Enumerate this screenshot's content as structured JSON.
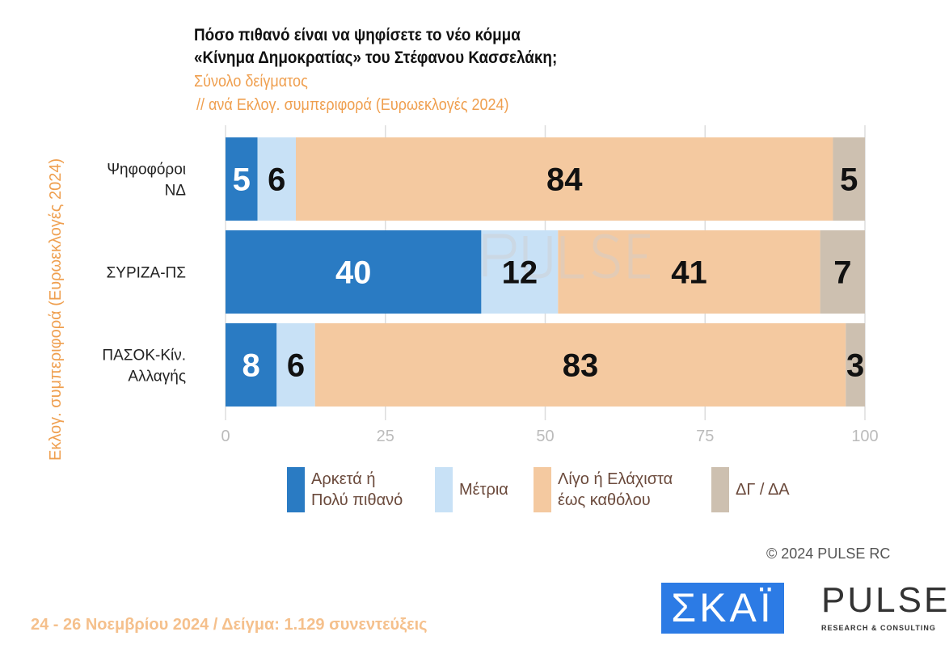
{
  "chart_data": {
    "type": "bar",
    "orientation": "horizontal",
    "stacked": true,
    "title": "Πόσο πιθανό είναι να ψηφίσετε το νέο κόμμα «Κίνημα Δημοκρατίας» του Στέφανου Κασσελάκη;",
    "title_lines": [
      "Πόσο πιθανό είναι να ψηφίσετε το νέο κόμμα",
      "«Κίνημα Δημοκρατίας» του Στέφανου Κασσελάκη;"
    ],
    "subtitle_lines": [
      "Σύνολο δείγματος",
      "// ανά Εκλογ. συμπεριφορά (Ευρωεκλογές 2024)"
    ],
    "ylabel": "Εκλογ. συμπεριφορά (Ευρωεκλογές 2024)",
    "categories": [
      "Ψηφοφόροι\nΝΔ",
      "ΣΥΡΙΖΑ-ΠΣ",
      "ΠΑΣΟΚ-Κίν.\nΑλλαγής"
    ],
    "xlim": [
      0,
      100
    ],
    "xticks": [
      "0",
      "25",
      "50",
      "75",
      "100"
    ],
    "grid": true,
    "legend": "bottom",
    "series": [
      {
        "name": "Αρκετά ή\nΠολύ πιθανό",
        "color": "#2a7bc3",
        "label_color": "#ffffff",
        "values": [
          5,
          40,
          8
        ]
      },
      {
        "name": "Μέτρια",
        "color": "#c8e1f6",
        "label_color": "#111111",
        "values": [
          6,
          12,
          6
        ]
      },
      {
        "name": "Λίγο ή Ελάχιστα\nέως καθόλου",
        "color": "#f4c9a0",
        "label_color": "#111111",
        "values": [
          84,
          41,
          83
        ]
      },
      {
        "name": "ΔΓ / ΔΑ",
        "color": "#cdc0b0",
        "label_color": "#111111",
        "values": [
          5,
          7,
          3
        ]
      }
    ]
  },
  "footer": {
    "copyright": "©  2024  PULSE RC",
    "fieldwork": "24 - 26 Νοεμβρίου 2024  /  Δείγμα:  1.129 συνεντεύξεις"
  },
  "logos": {
    "skai": "ΣΚΑΪ",
    "pulse": "PULSE",
    "pulse_tag": "RESEARCH & CONSULTING",
    "watermark": "PULSE"
  }
}
